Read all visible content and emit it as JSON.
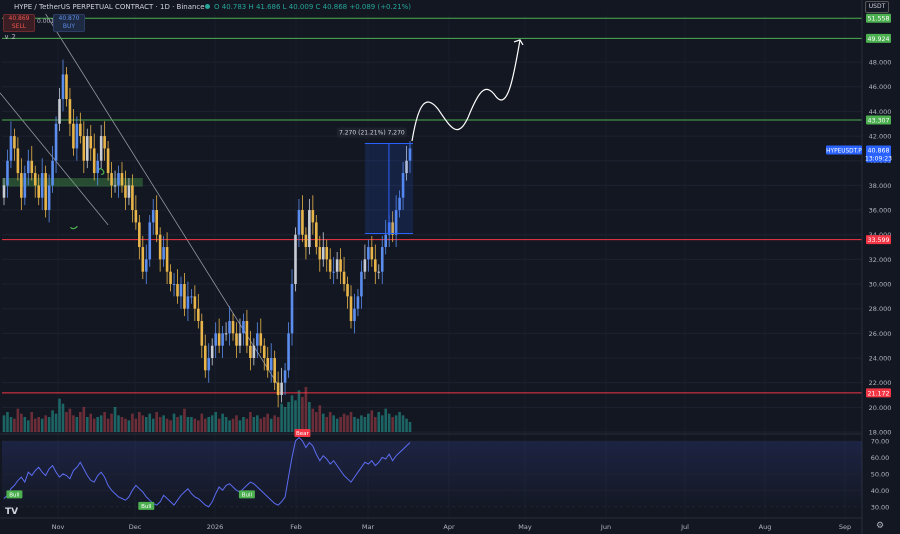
{
  "header": {
    "symbol": "HYPE / TetherUS PERPETUAL CONTRACT · 1D · Binance",
    "ohlc": "O 40.783  H 41.686  L 40.009  C 40.868  +0.089 (+0.21%)",
    "sell_price": "40.869",
    "sell_label": "SELL",
    "buy_price": "40.870",
    "buy_label": "BUY",
    "spread": "0.001",
    "indicator_toggle": "∨ 2",
    "currency": "USDT"
  },
  "colors": {
    "background": "#131722",
    "up_candle": "#5b8def",
    "down_candle": "#e8b54a",
    "neutral_candle": "#c8ccd4",
    "resistance_line": "#4caf50",
    "support_line": "#f23645",
    "rsi_line": "#5b6cf2",
    "price_label": "#2962ff"
  },
  "chart_data": {
    "type": "candlestick",
    "y_axis": {
      "min": 18,
      "max": 51.9,
      "ticks": [
        "48.000",
        "46.000",
        "44.000",
        "42.000",
        "40.000",
        "38.000",
        "36.000",
        "34.000",
        "32.000",
        "30.000",
        "28.000",
        "26.000",
        "24.000",
        "22.000",
        "20.000",
        "18.000"
      ]
    },
    "x_axis": {
      "labels": [
        "Nov",
        "Dec",
        "2026",
        "Feb",
        "Mar",
        "Apr",
        "May",
        "Jun",
        "Jul",
        "Aug",
        "Sep"
      ]
    },
    "levels": [
      {
        "value": 51.558,
        "label": "51.558",
        "color": "#4caf50"
      },
      {
        "value": 49.924,
        "label": "49.924",
        "color": "#4caf50"
      },
      {
        "value": 43.307,
        "label": "43.307",
        "color": "#4caf50"
      },
      {
        "value": 33.599,
        "label": "33.599",
        "color": "#f23645"
      },
      {
        "value": 21.172,
        "label": "21.172",
        "color": "#f23645"
      }
    ],
    "current_price": {
      "symbol": "HYPEUSDT.P",
      "value": 40.868,
      "label": "40.868",
      "countdown": "13:09:23"
    },
    "measurement": {
      "label": "7.270 (21.21%) 7,270",
      "from": 34.1,
      "to": 41.4
    },
    "closes": [
      38,
      40,
      42,
      41,
      39,
      37,
      39,
      40,
      39,
      38,
      37,
      39,
      36,
      38,
      40,
      43,
      45,
      47,
      45,
      43,
      41,
      43,
      42,
      40,
      42,
      41,
      39,
      40,
      42,
      41,
      39,
      38,
      38,
      39,
      38,
      37,
      38,
      36,
      35,
      33,
      31,
      32,
      35,
      36,
      34,
      32,
      33,
      31,
      30,
      30,
      29,
      30,
      28,
      29,
      29,
      28,
      27,
      25,
      23,
      24,
      25,
      26,
      25,
      26,
      26,
      27,
      26,
      25,
      26,
      27,
      25,
      24,
      25,
      26,
      25,
      24,
      23,
      24,
      22,
      21,
      22,
      23,
      26,
      30,
      34,
      36,
      34,
      33,
      36,
      35,
      33,
      32,
      33,
      32,
      31,
      31,
      32,
      31,
      30,
      29,
      27,
      28,
      29,
      31,
      32,
      33,
      32,
      31,
      31,
      33,
      34,
      35,
      34,
      36,
      37,
      39,
      40,
      41
    ],
    "volume": [
      10,
      12,
      9,
      8,
      14,
      11,
      9,
      7,
      12,
      8,
      9,
      8,
      10,
      9,
      13,
      11,
      20,
      17,
      12,
      14,
      10,
      9,
      12,
      15,
      9,
      11,
      8,
      9,
      10,
      12,
      8,
      11,
      15,
      10,
      9,
      8,
      7,
      11,
      8,
      12,
      10,
      9,
      11,
      8,
      12,
      9,
      10,
      8,
      7,
      11,
      9,
      10,
      14,
      9,
      9,
      8,
      7,
      11,
      8,
      9,
      10,
      12,
      8,
      11,
      9,
      7,
      8,
      10,
      7,
      9,
      8,
      12,
      9,
      10,
      8,
      9,
      11,
      8,
      10,
      9,
      17,
      15,
      18,
      22,
      19,
      25,
      21,
      27,
      18,
      14,
      12,
      16,
      11,
      9,
      12,
      10,
      8,
      9,
      11,
      10,
      12,
      9,
      8,
      10,
      9,
      11,
      13,
      9,
      12,
      10,
      14,
      11,
      9,
      10,
      12,
      10,
      8,
      6
    ],
    "rsi": {
      "ticks": [
        "70.00",
        "60.00",
        "50.00",
        "40.00",
        "30.00"
      ],
      "min": 25,
      "max": 73,
      "values": [
        35,
        37,
        41,
        43,
        46,
        48,
        45,
        51,
        49,
        52,
        54,
        51,
        49,
        53,
        55,
        51,
        48,
        50,
        49,
        47,
        52,
        54,
        57,
        53,
        49,
        46,
        45,
        49,
        51,
        48,
        43,
        40,
        38,
        36,
        35,
        34,
        36,
        40,
        43,
        41,
        39,
        36,
        34,
        32,
        31,
        33,
        37,
        35,
        33,
        31,
        34,
        37,
        39,
        41,
        38,
        36,
        35,
        33,
        31,
        30,
        33,
        38,
        42,
        40,
        43,
        44,
        42,
        40,
        39,
        41,
        43,
        45,
        44,
        42,
        40,
        38,
        36,
        34,
        32,
        31,
        33,
        36,
        48,
        60,
        70,
        72,
        70,
        66,
        69,
        67,
        62,
        58,
        61,
        59,
        56,
        58,
        55,
        52,
        49,
        47,
        45,
        48,
        51,
        54,
        57,
        56,
        58,
        55,
        57,
        60,
        59,
        62,
        58,
        61,
        63,
        65,
        67,
        69
      ],
      "signals": [
        {
          "label": "Bull",
          "type": "bull"
        },
        {
          "label": "Bull",
          "type": "bull"
        },
        {
          "label": "Bull",
          "type": "bull"
        },
        {
          "label": "Bear",
          "type": "bear"
        }
      ]
    }
  }
}
